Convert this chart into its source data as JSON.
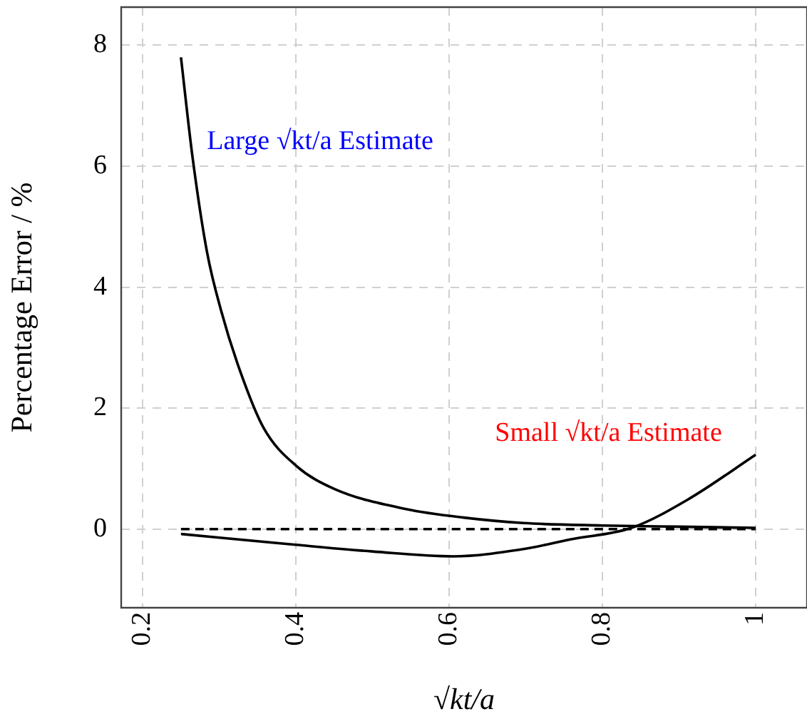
{
  "chart_data": {
    "type": "line",
    "xlabel": "√kt/a",
    "ylabel": "Percentage Error / %",
    "series": [
      {
        "color": "#000000",
        "x": [
          0.25,
          0.265,
          0.284,
          0.302,
          0.327,
          0.358,
          0.401,
          0.451,
          0.544,
          0.619,
          0.697,
          0.8,
          0.9,
          1.0
        ],
        "values": [
          7.8,
          6.16,
          4.58,
          3.63,
          2.62,
          1.67,
          1.04,
          0.66,
          0.33,
          0.19,
          0.1,
          0.06,
          0.04,
          0.02
        ]
      },
      {
        "color": "#000000",
        "x": [
          0.25,
          0.4,
          0.5,
          0.605,
          0.697,
          0.758,
          0.838,
          0.913,
          1.0
        ],
        "values": [
          -0.08,
          -0.26,
          -0.37,
          -0.45,
          -0.33,
          -0.17,
          0.02,
          0.5,
          1.23
        ]
      },
      {
        "color": "#000000",
        "line_style": "dashed",
        "x": [
          0.25,
          1.0
        ],
        "values": [
          0,
          0
        ]
      }
    ],
    "annotations": [
      "Large √kt/a Estimate",
      "Small √kt/a Estimate"
    ],
    "xlim": [
      0.172,
      1.067
    ],
    "ylim": [
      -1.3,
      8.63
    ],
    "xticks": [
      0.2,
      0.4,
      0.6,
      0.8,
      1
    ],
    "yticks": [
      0,
      2,
      4,
      6,
      8
    ],
    "grid": true,
    "marker": "none",
    "line_style": "solid",
    "legend": false
  }
}
